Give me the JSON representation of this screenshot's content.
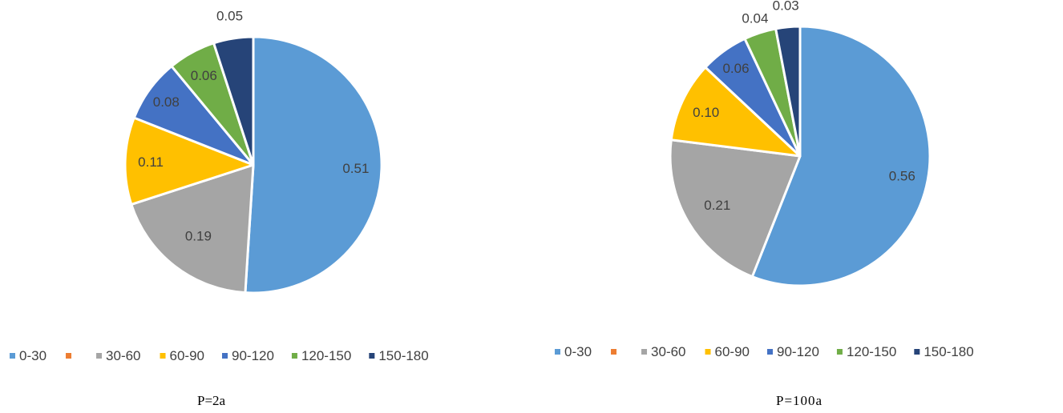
{
  "chart_data": [
    {
      "type": "pie",
      "title": "",
      "caption": "P=2a",
      "categories": [
        "0-30",
        "30-60",
        "60-90",
        "90-120",
        "120-150",
        "150-180"
      ],
      "values": [
        0.51,
        0.19,
        0.11,
        0.08,
        0.06,
        0.05
      ],
      "labels": [
        "0.51",
        "0.19",
        "0.11",
        "0.08",
        "0.06",
        "0.05"
      ],
      "legend": [
        "0-30",
        "",
        "30-60",
        "60-90",
        "90-120",
        "120-150",
        "150-180"
      ],
      "legend_placement": "bottom"
    },
    {
      "type": "pie",
      "title": "",
      "caption": "P=100a",
      "categories": [
        "0-30",
        "30-60",
        "60-90",
        "90-120",
        "120-150",
        "150-180"
      ],
      "values": [
        0.56,
        0.21,
        0.1,
        0.06,
        0.04,
        0.03
      ],
      "labels": [
        "0.56",
        "0.21",
        "0.10",
        "0.06",
        "0.04",
        "0.03"
      ],
      "legend": [
        "0-30",
        "",
        "30-60",
        "60-90",
        "90-120",
        "120-150",
        "150-180"
      ],
      "legend_placement": "bottom"
    }
  ],
  "colors": {
    "0-30": "#5B9BD5",
    "legend-orange": "#ED7D31",
    "30-60": "#A5A5A5",
    "60-90": "#FFC000",
    "90-120": "#4472C4",
    "120-150": "#70AD47",
    "150-180": "#264478"
  }
}
